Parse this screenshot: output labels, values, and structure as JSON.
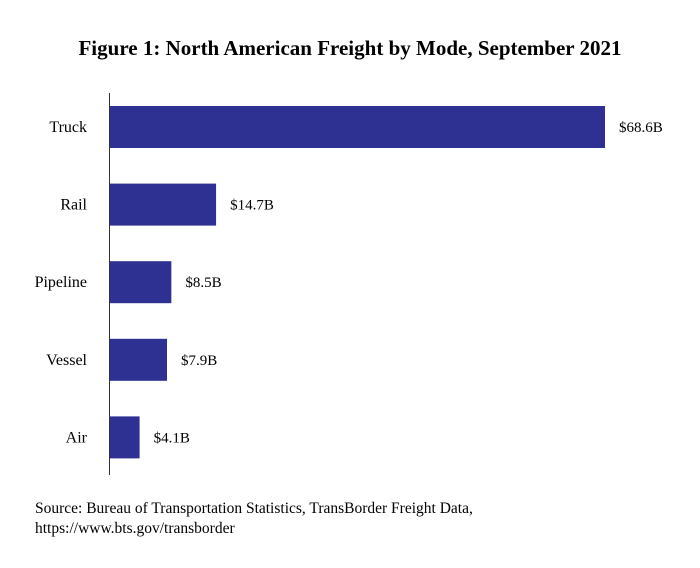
{
  "chart_data": {
    "type": "bar",
    "orientation": "horizontal",
    "title": "Figure 1: North American Freight by Mode, September 2021",
    "xlabel": "",
    "ylabel": "",
    "categories": [
      "Truck",
      "Rail",
      "Pipeline",
      "Vessel",
      "Air"
    ],
    "values": [
      68.6,
      14.7,
      8.5,
      7.9,
      4.1
    ],
    "data_labels": [
      "$68.6B",
      "$14.7B",
      "$8.5B",
      "$7.9B",
      "$4.1B"
    ],
    "unit": "billion USD",
    "xlim": [
      0,
      68.6
    ],
    "grid": false,
    "legend": "none",
    "bar_color": "#2e3192"
  },
  "source": {
    "line1": "Source: Bureau of Transportation Statistics, TransBorder Freight Data,",
    "line2": "https://www.bts.gov/transborder"
  }
}
